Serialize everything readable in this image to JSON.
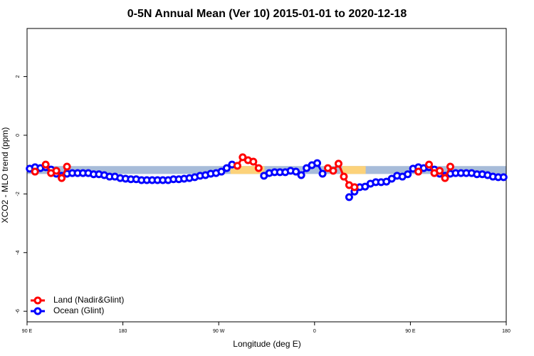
{
  "chart_data": {
    "type": "line",
    "title": "0-5N Annual Mean (Ver 10)   2015-01-01 to 2020-12-18",
    "xlabel": "Longitude (deg E)",
    "ylabel": "XCO2 - MLO trend (ppm)",
    "xlim": [
      90,
      540
    ],
    "ylim": [
      -6.36,
      3.64
    ],
    "xticks": [
      {
        "value": 90,
        "label": "90 E"
      },
      180,
      {
        "value": 270,
        "label": "90 W"
      },
      {
        "value": 360,
        "label": "0"
      },
      {
        "value": 450,
        "label": "90 E"
      },
      {
        "value": 540,
        "label": "180"
      }
    ],
    "yticks": [
      -6,
      -4,
      -2,
      0,
      2
    ],
    "legend": "bottomleft",
    "band": {
      "range": [
        -1.32,
        -1.05
      ],
      "color": "#a7bcd9",
      "highlights": [
        {
          "xlim": [
            281,
            313
          ],
          "color": "#fcd27a"
        },
        {
          "xlim": [
            386,
            408
          ],
          "color": "#fcd27a"
        }
      ]
    },
    "x": [
      92.5,
      97.5,
      102.5,
      107.5,
      112.5,
      117.5,
      122.5,
      127.5,
      132.5,
      137.5,
      142.5,
      147.5,
      152.5,
      157.5,
      162.5,
      167.5,
      172.5,
      177.5,
      182.5,
      187.5,
      192.5,
      197.5,
      202.5,
      207.5,
      212.5,
      217.5,
      222.5,
      227.5,
      232.5,
      237.5,
      242.5,
      247.5,
      252.5,
      257.5,
      262.5,
      267.5,
      272.5,
      277.5,
      282.5,
      287.5,
      292.5,
      297.5,
      302.5,
      307.5,
      312.5,
      317.5,
      322.5,
      327.5,
      332.5,
      337.5,
      342.5,
      347.5,
      352.5,
      357.5,
      362.5,
      367.5,
      372.5,
      377.5,
      382.5,
      387.5,
      392.5,
      397.5,
      402.5,
      407.5,
      412.5,
      417.5,
      422.5,
      427.5,
      432.5,
      437.5,
      442.5,
      447.5,
      452.5,
      457.5,
      462.5,
      467.5,
      472.5,
      477.5,
      482.5,
      487.5,
      492.5,
      497.5,
      502.5,
      507.5,
      512.5,
      517.5,
      522.5,
      527.5,
      532.5,
      537.5
    ],
    "series": [
      {
        "name": "Ocean (Glint)",
        "color": "#0000ff",
        "values": [
          -1.14,
          -1.09,
          -1.12,
          -1.09,
          -1.17,
          -1.31,
          -1.38,
          -1.31,
          -1.29,
          -1.29,
          -1.29,
          -1.29,
          -1.33,
          -1.33,
          -1.36,
          -1.41,
          -1.41,
          -1.46,
          -1.48,
          -1.5,
          -1.5,
          -1.53,
          -1.53,
          -1.53,
          -1.53,
          -1.53,
          -1.53,
          -1.5,
          -1.5,
          -1.48,
          -1.46,
          -1.43,
          -1.38,
          -1.36,
          -1.31,
          -1.29,
          -1.24,
          -1.12,
          -1.0,
          null,
          null,
          null,
          null,
          null,
          -1.38,
          -1.29,
          -1.26,
          -1.26,
          -1.26,
          -1.21,
          -1.24,
          -1.36,
          -1.12,
          -1.02,
          -0.95,
          -1.31,
          null,
          null,
          null,
          null,
          -2.11,
          -1.92,
          -1.77,
          -1.75,
          -1.65,
          -1.6,
          -1.6,
          -1.58,
          -1.48,
          -1.38,
          -1.41,
          -1.33,
          -1.14,
          -1.09,
          -1.12,
          -1.09,
          -1.17,
          -1.31,
          -1.38,
          -1.31,
          -1.29,
          -1.29,
          -1.29,
          -1.29,
          -1.33,
          -1.33,
          -1.36,
          -1.41,
          -1.43,
          -1.43
        ]
      },
      {
        "name": "Land (Nadir&Glint)",
        "color": "#ff0000",
        "values": [
          null,
          -1.24,
          null,
          -1.0,
          -1.29,
          -1.21,
          -1.46,
          -1.07,
          null,
          null,
          null,
          null,
          null,
          null,
          null,
          null,
          null,
          null,
          null,
          null,
          null,
          null,
          null,
          null,
          null,
          null,
          null,
          null,
          null,
          null,
          null,
          null,
          null,
          null,
          null,
          null,
          null,
          null,
          null,
          -1.04,
          -0.75,
          -0.85,
          -0.9,
          -1.12,
          null,
          null,
          null,
          null,
          null,
          null,
          null,
          null,
          null,
          null,
          null,
          null,
          -1.12,
          -1.21,
          -0.97,
          -1.41,
          -1.7,
          -1.77,
          null,
          null,
          null,
          null,
          null,
          null,
          null,
          null,
          null,
          null,
          null,
          -1.24,
          null,
          -1.0,
          -1.29,
          -1.21,
          -1.46,
          -1.07,
          null,
          null,
          null,
          null,
          null,
          null,
          null,
          null,
          null,
          null
        ]
      }
    ]
  }
}
